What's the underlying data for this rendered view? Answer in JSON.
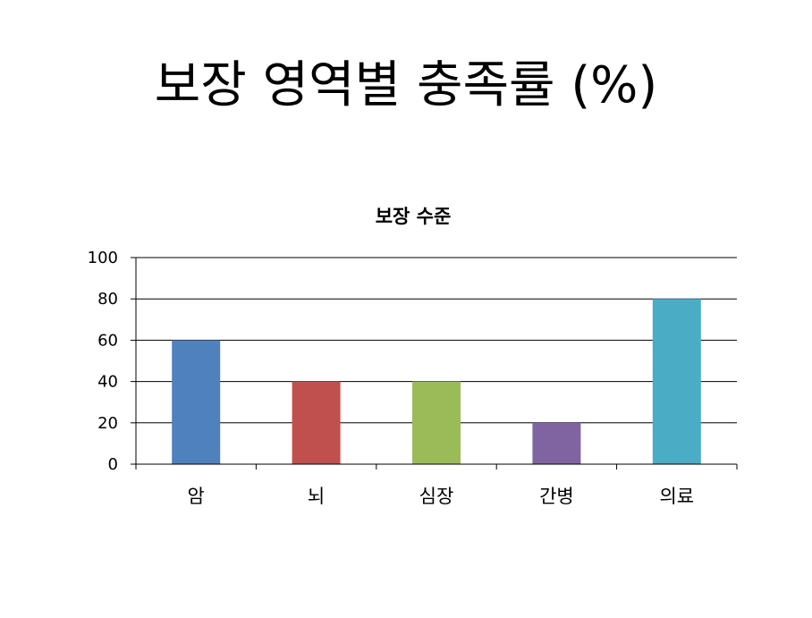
{
  "slide": {
    "title": "보장 영역별 충족률 (%)"
  },
  "chart_data": {
    "type": "bar",
    "title": "보장 수준",
    "xlabel": "",
    "ylabel": "",
    "categories": [
      "암",
      "뇌",
      "심장",
      "간병",
      "의료"
    ],
    "values": [
      60,
      40,
      40,
      20,
      80
    ],
    "colors": [
      "#4F81BD",
      "#C0504D",
      "#9BBB59",
      "#8064A2",
      "#4BACC6"
    ],
    "ylim": [
      0,
      100
    ],
    "yticks": [
      0,
      20,
      40,
      60,
      80,
      100
    ],
    "grid": true,
    "legend": "none"
  }
}
